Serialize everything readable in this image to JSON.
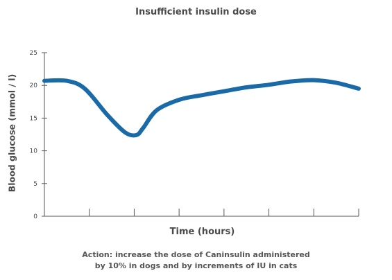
{
  "chart_data": {
    "type": "line",
    "title": "Insufficient insulin dose",
    "xlabel": "Time (hours)",
    "ylabel": "Blood glucose (mmol / l)",
    "ylim": [
      0,
      25
    ],
    "yticks": [
      "0",
      "5",
      "10",
      "15",
      "20",
      "25"
    ],
    "xlim": [
      0,
      7
    ],
    "xticks_count": 7,
    "grid": false,
    "line_color": "#1a6aa8",
    "series": [
      {
        "x": [
          0,
          0.5,
          0.9,
          1.4,
          1.8,
          2.05,
          2.2,
          2.5,
          3.0,
          3.5,
          4.0,
          4.5,
          5.0,
          5.5,
          6.0,
          6.5,
          7.0
        ],
        "values": [
          20.7,
          20.7,
          19.5,
          15.5,
          12.8,
          12.4,
          13.5,
          16.2,
          17.8,
          18.5,
          19.1,
          19.7,
          20.1,
          20.6,
          20.8,
          20.4,
          19.5
        ]
      }
    ]
  },
  "footnote": {
    "line1": "Action: increase the dose of Caninsulin administered",
    "line2": "by 10% in dogs and by increments of IU in cats"
  }
}
